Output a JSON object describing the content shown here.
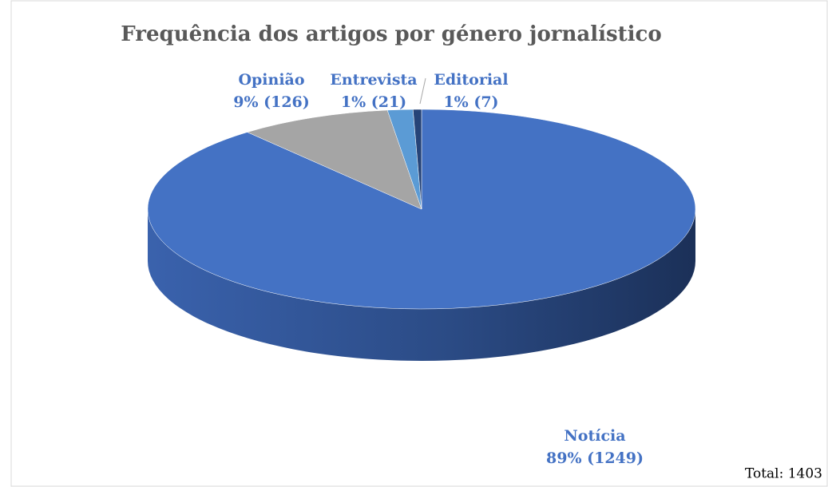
{
  "chart_data": {
    "type": "pie",
    "title": "Frequência dos artigos por género jornalístico",
    "categories": [
      "Notícia",
      "Opinião",
      "Entrevista",
      "Editorial"
    ],
    "values": [
      1249,
      126,
      21,
      7
    ],
    "value_labels": [
      "89% (1249)",
      "9% (126)",
      "1% (21)",
      "1% (7)"
    ],
    "colors": [
      "#4472c4",
      "#a5a5a5",
      "#5b9bd5",
      "#264478"
    ],
    "annotation": "Total: 1403"
  }
}
